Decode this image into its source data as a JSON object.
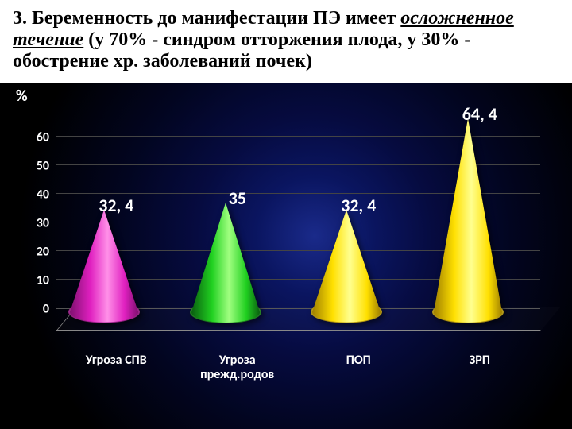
{
  "header": {
    "prefix": "3. Беременность до манифестации ПЭ имеет ",
    "underlined": "осложненное течение",
    "suffix": " (у 70% - синдром отторжения плода, у 30% - обострение хр. заболеваний почек)"
  },
  "chart": {
    "type": "cone-bar-3d",
    "y_axis_label": "%",
    "y_ticks": [
      0,
      10,
      20,
      30,
      40,
      50,
      60
    ],
    "y_max": 70,
    "categories": [
      "Угроза СПВ",
      "Угроза прежд.родов",
      "ПОП",
      "ЗРП"
    ],
    "values": [
      32.4,
      35,
      32.4,
      64.4
    ],
    "value_labels": [
      "32, 4",
      "35",
      "32, 4",
      "64, 4"
    ],
    "cone_colors": [
      "#e020c0",
      "#20d020",
      "#ffe000",
      "#ffe000"
    ],
    "cone_highlight": [
      "#ff90e8",
      "#a0ff80",
      "#ffff90",
      "#ffff90"
    ],
    "cone_shadow": [
      "#801070",
      "#0a6010",
      "#a08000",
      "#a08000"
    ],
    "grid_color": "#444444",
    "text_color": "#ffffff",
    "label_fontsize": 16,
    "value_fontsize": 22
  }
}
